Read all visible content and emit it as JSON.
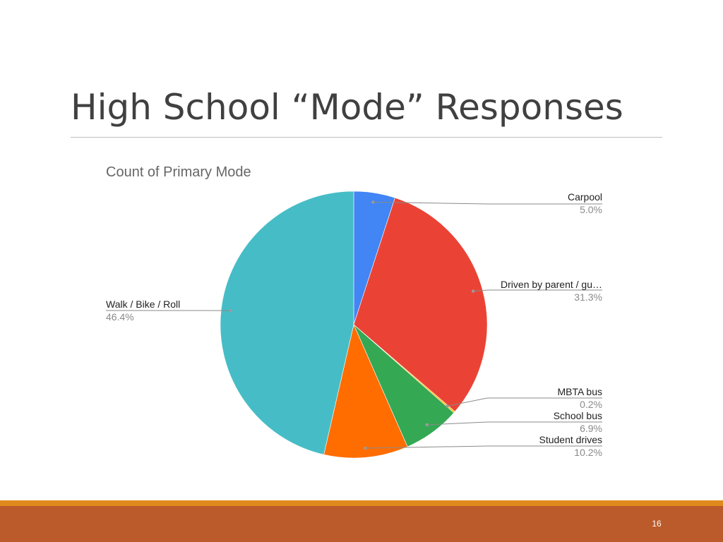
{
  "slide": {
    "title": "High School “Mode” Responses",
    "page_number": "16"
  },
  "colors": {
    "footer_bar": "#bb5a2b",
    "footer_line": "#e08a1e"
  },
  "chart_data": {
    "type": "pie",
    "title": "Count of Primary Mode",
    "start_angle_deg": 0,
    "direction": "clockwise",
    "legend": "none",
    "slices": [
      {
        "label": "Carpool",
        "display_label": "Carpool",
        "value": 5.0,
        "percent_label": "5.0%",
        "color": "#4285f4"
      },
      {
        "label": "Driven by parent / guardian",
        "display_label": "Driven by parent / gu…",
        "value": 31.3,
        "percent_label": "31.3%",
        "color": "#ea4335"
      },
      {
        "label": "MBTA bus",
        "display_label": "MBTA bus",
        "value": 0.2,
        "percent_label": "0.2%",
        "color": "#fbbc04"
      },
      {
        "label": "School bus",
        "display_label": "School bus",
        "value": 6.9,
        "percent_label": "6.9%",
        "color": "#34a853"
      },
      {
        "label": "Student drives",
        "display_label": "Student drives",
        "value": 10.2,
        "percent_label": "10.2%",
        "color": "#ff6d01"
      },
      {
        "label": "Walk / Bike / Roll",
        "display_label": "Walk / Bike / Roll",
        "value": 46.4,
        "percent_label": "46.4%",
        "color": "#46bdc6"
      }
    ]
  }
}
